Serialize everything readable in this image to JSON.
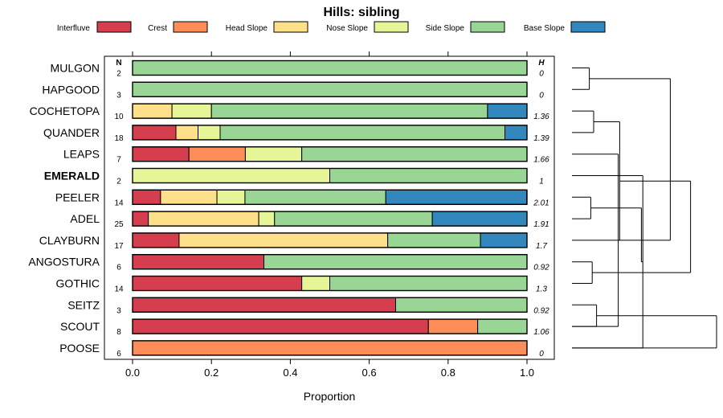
{
  "chart_data": {
    "type": "bar",
    "orientation": "horizontal",
    "stacked": true,
    "title": "Hills: sibling",
    "xlabel": "Proportion",
    "ylabel": "",
    "xlim": [
      0,
      1
    ],
    "x_ticks": [
      "0.0",
      "0.2",
      "0.4",
      "0.6",
      "0.8",
      "1.0"
    ],
    "n_header": "N",
    "h_header": "H",
    "legend": [
      {
        "name": "Interfluve",
        "color": "#D53E4F"
      },
      {
        "name": "Crest",
        "color": "#FC8D59"
      },
      {
        "name": "Head Slope",
        "color": "#FEE08B"
      },
      {
        "name": "Nose Slope",
        "color": "#E6F598"
      },
      {
        "name": "Side Slope",
        "color": "#99D594"
      },
      {
        "name": "Base Slope",
        "color": "#3288BD"
      }
    ],
    "categories": [
      "MULGON",
      "HAPGOOD",
      "COCHETOPA",
      "QUANDER",
      "LEAPS",
      "EMERALD",
      "PEELER",
      "ADEL",
      "CLAYBURN",
      "ANGOSTURA",
      "GOTHIC",
      "SEITZ",
      "SCOUT",
      "POOSE"
    ],
    "highlighted": "EMERALD",
    "n": [
      "2",
      "3",
      "10",
      "18",
      "7",
      "2",
      "14",
      "25",
      "17",
      "6",
      "14",
      "3",
      "8",
      "6"
    ],
    "h": [
      "0",
      "0",
      "1.36",
      "1.39",
      "1.66",
      "1",
      "2.01",
      "1.91",
      "1.7",
      "0.92",
      "1.3",
      "0.92",
      "1.06",
      "0"
    ],
    "series": [
      {
        "name": "Interfluve",
        "values": [
          0,
          0,
          0,
          0.11,
          0.143,
          0,
          0.071,
          0.04,
          0.118,
          0.333,
          0.429,
          0.667,
          0.75,
          0
        ]
      },
      {
        "name": "Crest",
        "values": [
          0,
          0,
          0,
          0,
          0.143,
          0,
          0,
          0,
          0,
          0,
          0,
          0,
          0.125,
          1.0
        ]
      },
      {
        "name": "Head Slope",
        "values": [
          0,
          0,
          0.1,
          0.056,
          0,
          0,
          0.143,
          0.28,
          0.529,
          0,
          0,
          0,
          0,
          0
        ]
      },
      {
        "name": "Nose Slope",
        "values": [
          0,
          0,
          0.1,
          0.056,
          0.143,
          0.5,
          0.071,
          0.04,
          0,
          0,
          0.071,
          0,
          0,
          0
        ]
      },
      {
        "name": "Side Slope",
        "values": [
          1.0,
          1.0,
          0.7,
          0.722,
          0.571,
          0.5,
          0.357,
          0.4,
          0.235,
          0.667,
          0.5,
          0.333,
          0.125,
          0
        ]
      },
      {
        "name": "Base Slope",
        "values": [
          0,
          0,
          0.1,
          0.056,
          0,
          0,
          0.357,
          0.24,
          0.118,
          0,
          0,
          0,
          0,
          0
        ]
      }
    ],
    "dendrogram": [
      {
        "a": 0,
        "b": 1,
        "h": 0.12
      },
      {
        "a": 2,
        "b": 3,
        "h": 0.15
      },
      {
        "a": 12,
        "b": 4,
        "h": 0.32
      },
      {
        "a": 13,
        "b": 5,
        "h": 0.49
      },
      {
        "a": 6,
        "b": 7,
        "h": 0.13
      },
      {
        "a": 15,
        "b": 8,
        "h": 0.33
      },
      {
        "a": 9,
        "b": 10,
        "h": 0.14
      },
      {
        "a": 11,
        "b": 12,
        "h": 0.17
      },
      {
        "a": 17,
        "b": 18,
        "h": 0.48
      },
      {
        "a": 14,
        "b": 16,
        "h": 0.68
      },
      {
        "a": 20,
        "b": 19,
        "h": 0.82
      },
      {
        "a": 21,
        "b": 13,
        "h": 1.0
      }
    ]
  }
}
